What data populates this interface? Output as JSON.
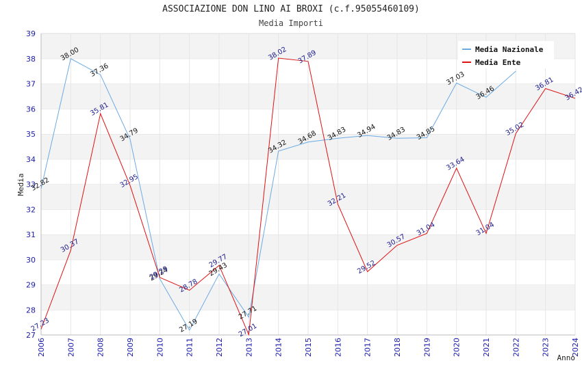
{
  "chart_data": {
    "type": "line",
    "title": "ASSOCIAZIONE DON LINO AI BROXI (c.f.95055460109)",
    "subtitle": "Media Importi",
    "xlabel": "Anno",
    "ylabel": "Media",
    "ylim": [
      27,
      39
    ],
    "yticks": [
      "27",
      "28",
      "29",
      "30",
      "31",
      "32",
      "33",
      "34",
      "35",
      "36",
      "37",
      "38",
      "39"
    ],
    "categories": [
      "2006",
      "2007",
      "2008",
      "2009",
      "2010",
      "2011",
      "2012",
      "2013",
      "2014",
      "2015",
      "2016",
      "2017",
      "2018",
      "2019",
      "2020",
      "2021",
      "2022",
      "2023",
      "2024"
    ],
    "grid": "horizontal bands",
    "legend_position": "top-right",
    "series": [
      {
        "name": "Media Nazionale",
        "color": "#6aaae4",
        "label_color": "#111111",
        "values": [
          32.82,
          38.0,
          37.36,
          34.79,
          29.24,
          27.19,
          29.43,
          27.71,
          34.32,
          34.68,
          34.83,
          34.94,
          34.83,
          34.85,
          37.03,
          36.46,
          37.5,
          null,
          null
        ],
        "labels": [
          "32.82",
          "38.00",
          "37.36",
          "34.79",
          "29.24",
          "27.19",
          "29.43",
          "27.71",
          "34.32",
          "34.68",
          "34.83",
          "34.94",
          "34.83",
          "34.85",
          "37.03",
          "36.46",
          "",
          "",
          ""
        ]
      },
      {
        "name": "Media Ente",
        "color": "#e01010",
        "label_color": "#1a1a8c",
        "values": [
          27.23,
          30.37,
          35.81,
          32.95,
          29.29,
          28.78,
          29.77,
          27.01,
          38.02,
          37.89,
          32.21,
          29.52,
          30.57,
          31.04,
          33.64,
          31.04,
          35.02,
          36.81,
          36.42
        ],
        "labels": [
          "27.23",
          "30.37",
          "35.81",
          "32.95",
          "29.29",
          "28.78",
          "29.77",
          "27.01",
          "38.02",
          "37.89",
          "32.21",
          "29.52",
          "30.57",
          "31.04",
          "33.64",
          "31.04",
          "35.02",
          "36.81",
          "36.42"
        ]
      }
    ]
  }
}
